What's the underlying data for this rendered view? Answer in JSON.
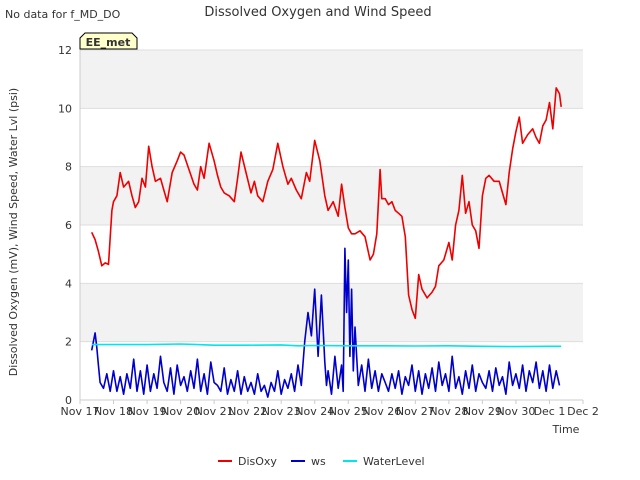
{
  "note": "No data for f_MD_DO",
  "badge": "EE_met",
  "chart_data": {
    "type": "line",
    "title": "Dissolved Oxygen and Wind Speed",
    "xlabel": "Time",
    "ylabel": "Dissolved Oxygen (mV), Wind Speed, Water Lvl (psi)",
    "xlim": [
      0,
      15
    ],
    "ylim": [
      0,
      12
    ],
    "x_ticks": [
      {
        "value": 0,
        "label": "Nov 17"
      },
      {
        "value": 1,
        "label": "Nov 18"
      },
      {
        "value": 2,
        "label": "Nov 19"
      },
      {
        "value": 3,
        "label": "Nov 20"
      },
      {
        "value": 4,
        "label": "Nov 21"
      },
      {
        "value": 5,
        "label": "Nov 22"
      },
      {
        "value": 6,
        "label": "Nov 23"
      },
      {
        "value": 7,
        "label": "Nov 24"
      },
      {
        "value": 8,
        "label": "Nov 25"
      },
      {
        "value": 9,
        "label": "Nov 26"
      },
      {
        "value": 10,
        "label": "Nov 27"
      },
      {
        "value": 11,
        "label": "Nov 28"
      },
      {
        "value": 12,
        "label": "Nov 29"
      },
      {
        "value": 13,
        "label": "Nov 30"
      },
      {
        "value": 14,
        "label": "Dec 1"
      },
      {
        "value": 15,
        "label": "Dec 2"
      }
    ],
    "y_ticks": [
      0,
      2,
      4,
      6,
      8,
      10,
      12
    ],
    "legend_position": "bottom",
    "series": [
      {
        "name": "DisOxy",
        "color": "#ee0000",
        "x": [
          0.35,
          0.45,
          0.55,
          0.65,
          0.75,
          0.85,
          0.95,
          1.0,
          1.1,
          1.2,
          1.3,
          1.45,
          1.55,
          1.65,
          1.75,
          1.85,
          1.95,
          2.05,
          2.15,
          2.25,
          2.4,
          2.5,
          2.6,
          2.75,
          2.9,
          3.0,
          3.1,
          3.25,
          3.4,
          3.5,
          3.6,
          3.7,
          3.85,
          4.0,
          4.1,
          4.2,
          4.3,
          4.45,
          4.6,
          4.7,
          4.8,
          4.95,
          5.1,
          5.2,
          5.3,
          5.45,
          5.6,
          5.75,
          5.9,
          6.05,
          6.2,
          6.3,
          6.45,
          6.6,
          6.75,
          6.85,
          7.0,
          7.15,
          7.3,
          7.4,
          7.55,
          7.7,
          7.8,
          7.9,
          8.0,
          8.1,
          8.2,
          8.35,
          8.5,
          8.65,
          8.75,
          8.85,
          8.95,
          9.0,
          9.1,
          9.2,
          9.3,
          9.4,
          9.5,
          9.6,
          9.7,
          9.8,
          9.9,
          10.0,
          10.1,
          10.2,
          10.35,
          10.5,
          10.6,
          10.7,
          10.85,
          11.0,
          11.1,
          11.2,
          11.3,
          11.4,
          11.5,
          11.6,
          11.7,
          11.8,
          11.9,
          12.0,
          12.1,
          12.2,
          12.35,
          12.5,
          12.6,
          12.7,
          12.8,
          12.9,
          13.0,
          13.1,
          13.2,
          13.35,
          13.5,
          13.6,
          13.7,
          13.8,
          13.9,
          14.0,
          14.1,
          14.2,
          14.3
        ],
        "y": [
          5.75,
          5.5,
          5.1,
          4.6,
          4.7,
          4.65,
          6.5,
          6.8,
          7.0,
          7.8,
          7.3,
          7.5,
          7.0,
          6.6,
          6.8,
          7.6,
          7.3,
          8.7,
          8.0,
          7.5,
          7.6,
          7.2,
          6.8,
          7.8,
          8.2,
          8.5,
          8.4,
          7.9,
          7.4,
          7.2,
          8.0,
          7.6,
          8.8,
          8.2,
          7.7,
          7.3,
          7.1,
          7.0,
          6.8,
          7.6,
          8.5,
          7.8,
          7.1,
          7.5,
          7.0,
          6.8,
          7.5,
          7.9,
          8.8,
          8.0,
          7.4,
          7.6,
          7.2,
          6.9,
          7.8,
          7.5,
          8.9,
          8.2,
          7.0,
          6.5,
          6.8,
          6.3,
          7.4,
          6.6,
          5.9,
          5.7,
          5.7,
          5.8,
          5.6,
          4.8,
          5.0,
          5.7,
          7.9,
          6.9,
          6.9,
          6.7,
          6.8,
          6.5,
          6.4,
          6.3,
          5.6,
          3.6,
          3.1,
          2.8,
          4.3,
          3.8,
          3.5,
          3.7,
          3.9,
          4.6,
          4.8,
          5.4,
          4.8,
          6.0,
          6.5,
          7.7,
          6.4,
          6.8,
          6.0,
          5.8,
          5.2,
          7.0,
          7.6,
          7.7,
          7.5,
          7.5,
          7.1,
          6.7,
          7.8,
          8.6,
          9.2,
          9.7,
          8.8,
          9.1,
          9.3,
          9.0,
          8.8,
          9.4,
          9.6,
          10.2,
          9.3,
          10.7,
          10.5
        ],
        "x_end": [
          14.35
        ],
        "y_end": [
          10.05
        ]
      },
      {
        "name": "ws",
        "color": "#0000cc",
        "x": [
          0.35,
          0.4,
          0.45,
          0.5,
          0.55,
          0.6,
          0.7,
          0.8,
          0.9,
          1.0,
          1.1,
          1.2,
          1.3,
          1.4,
          1.5,
          1.6,
          1.7,
          1.8,
          1.9,
          2.0,
          2.1,
          2.2,
          2.3,
          2.4,
          2.5,
          2.6,
          2.7,
          2.8,
          2.9,
          3.0,
          3.1,
          3.2,
          3.3,
          3.4,
          3.5,
          3.6,
          3.7,
          3.8,
          3.9,
          4.0,
          4.1,
          4.2,
          4.3,
          4.4,
          4.5,
          4.6,
          4.7,
          4.8,
          4.9,
          5.0,
          5.1,
          5.2,
          5.3,
          5.4,
          5.5,
          5.6,
          5.7,
          5.8,
          5.9,
          6.0,
          6.1,
          6.2,
          6.3,
          6.4,
          6.5,
          6.6,
          6.7,
          6.8,
          6.9,
          7.0,
          7.1,
          7.2,
          7.3,
          7.35,
          7.4,
          7.5,
          7.6,
          7.7,
          7.8,
          7.85,
          7.9,
          7.95,
          8.0,
          8.05,
          8.1,
          8.15,
          8.2,
          8.3,
          8.4,
          8.5,
          8.6,
          8.7,
          8.8,
          8.9,
          9.0,
          9.1,
          9.2,
          9.3,
          9.4,
          9.5,
          9.6,
          9.7,
          9.8,
          9.9,
          10.0,
          10.1,
          10.2,
          10.3,
          10.4,
          10.5,
          10.6,
          10.7,
          10.8,
          10.9,
          11.0,
          11.1,
          11.2,
          11.3,
          11.4,
          11.5,
          11.6,
          11.7,
          11.8,
          11.9,
          12.0,
          12.1,
          12.2,
          12.3,
          12.4,
          12.5,
          12.6,
          12.7,
          12.8,
          12.9,
          13.0,
          13.1,
          13.2,
          13.3,
          13.4,
          13.5,
          13.6,
          13.7,
          13.8,
          13.9,
          14.0,
          14.1,
          14.2,
          14.3
        ],
        "y": [
          1.7,
          2.0,
          2.3,
          1.8,
          1.2,
          0.6,
          0.4,
          0.9,
          0.3,
          1.0,
          0.3,
          0.8,
          0.2,
          0.9,
          0.4,
          1.4,
          0.3,
          1.0,
          0.2,
          1.2,
          0.3,
          0.9,
          0.4,
          1.5,
          0.6,
          0.3,
          1.1,
          0.2,
          1.2,
          0.5,
          0.8,
          0.3,
          1.0,
          0.4,
          1.4,
          0.3,
          0.9,
          0.2,
          1.3,
          0.6,
          0.5,
          0.3,
          1.1,
          0.2,
          0.7,
          0.3,
          1.0,
          0.2,
          0.8,
          0.3,
          0.6,
          0.2,
          0.9,
          0.3,
          0.5,
          0.1,
          0.6,
          0.3,
          1.0,
          0.2,
          0.7,
          0.4,
          0.9,
          0.3,
          1.2,
          0.5,
          2.0,
          3.0,
          2.2,
          3.8,
          1.5,
          3.6,
          1.3,
          0.5,
          1.0,
          0.2,
          1.5,
          0.4,
          1.2,
          0.3,
          5.2,
          3.0,
          4.8,
          1.5,
          3.8,
          1.0,
          2.5,
          0.5,
          1.2,
          0.3,
          1.4,
          0.4,
          1.0,
          0.3,
          0.9,
          0.6,
          0.3,
          0.9,
          0.4,
          1.0,
          0.2,
          0.8,
          0.5,
          1.2,
          0.3,
          1.0,
          0.2,
          0.9,
          0.4,
          1.1,
          0.3,
          1.3,
          0.5,
          0.9,
          0.3,
          1.5,
          0.4,
          0.8,
          0.2,
          1.0,
          0.4,
          1.2,
          0.3,
          0.9,
          0.6,
          0.4,
          1.0,
          0.3,
          1.1,
          0.5,
          0.8,
          0.2,
          1.3,
          0.5,
          0.9,
          0.4,
          1.2,
          0.3,
          1.0,
          0.6,
          1.3,
          0.4,
          1.0,
          0.3,
          1.2,
          0.4,
          1.0,
          0.5
        ],
        "x_end": [],
        "y_end": []
      },
      {
        "name": "WaterLevel",
        "color": "#00e5ee",
        "x": [
          0.35,
          1.0,
          2.0,
          3.0,
          3.5,
          4.0,
          5.0,
          6.0,
          6.5,
          7.0,
          8.0,
          9.0,
          10.0,
          11.0,
          12.0,
          13.0,
          14.0,
          14.35
        ],
        "y": [
          1.9,
          1.9,
          1.9,
          1.92,
          1.9,
          1.88,
          1.88,
          1.89,
          1.86,
          1.87,
          1.86,
          1.86,
          1.85,
          1.86,
          1.84,
          1.83,
          1.84,
          1.84
        ],
        "x_end": [],
        "y_end": []
      }
    ]
  }
}
